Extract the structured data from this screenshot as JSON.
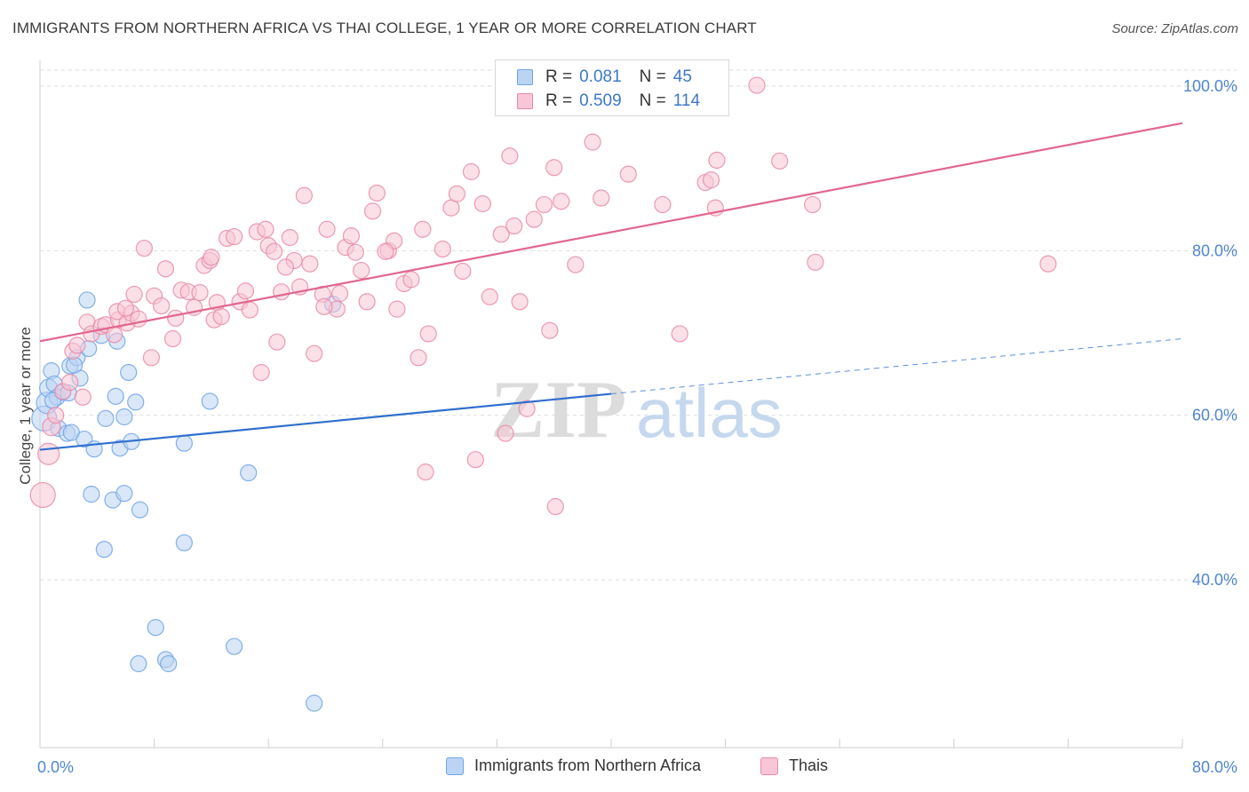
{
  "title": "IMMIGRANTS FROM NORTHERN AFRICA VS THAI COLLEGE, 1 YEAR OR MORE CORRELATION CHART",
  "source": "Source: ZipAtlas.com",
  "watermark": {
    "zip": "ZIP",
    "atlas": "atlas"
  },
  "legend": {
    "r_label": "R =",
    "n_label": "N =",
    "series": [
      {
        "name": "Immigrants from Northern Africa",
        "r": "0.081",
        "n": "45",
        "color": "#6fa3e6",
        "fill": "#bcd4f3"
      },
      {
        "name": "Thais",
        "r": "0.509",
        "n": "114",
        "color": "#e889a8",
        "fill": "#f8c6d6"
      }
    ]
  },
  "chart_data": {
    "type": "scatter",
    "title": "IMMIGRANTS FROM NORTHERN AFRICA VS THAI COLLEGE, 1 YEAR OR MORE CORRELATION CHART",
    "xlabel": "",
    "ylabel": "College, 1 year or more",
    "xlim": [
      0,
      80
    ],
    "ylim": [
      20,
      102
    ],
    "x_tick_labels": [
      "0.0%",
      "80.0%"
    ],
    "y_ticks": [
      40,
      60,
      80,
      100
    ],
    "y_tick_labels": [
      "40.0%",
      "60.0%",
      "80.0%",
      "100.0%"
    ],
    "grid": "horizontal dashed",
    "series": [
      {
        "name": "Immigrants from Northern Africa",
        "color": "#6fa3e6",
        "fill": "#bcd4f3",
        "trend": {
          "x0": 0,
          "y0": 55.8,
          "x1": 40,
          "y1": 62.6,
          "dash_to_x": 80,
          "dash_to_y": 69.3
        },
        "points": [
          [
            0.3,
            59.6,
            14
          ],
          [
            0.5,
            61.5,
            12
          ],
          [
            0.6,
            63.3,
            10
          ],
          [
            0.8,
            65.4,
            9
          ],
          [
            1.0,
            63.8,
            9
          ],
          [
            1.2,
            62.2,
            9
          ],
          [
            1.3,
            58.4,
            9
          ],
          [
            1.6,
            62.8,
            9
          ],
          [
            1.9,
            57.8,
            9
          ],
          [
            2.1,
            66.0,
            9
          ],
          [
            2.2,
            57.9,
            9
          ],
          [
            2.6,
            67.0,
            9
          ],
          [
            2.8,
            64.5,
            9
          ],
          [
            3.1,
            57.1,
            9
          ],
          [
            3.4,
            68.1,
            9
          ],
          [
            3.3,
            74.0,
            9
          ],
          [
            3.8,
            55.9,
            9
          ],
          [
            4.3,
            69.7,
            9
          ],
          [
            4.6,
            59.6,
            9
          ],
          [
            5.3,
            62.3,
            9
          ],
          [
            5.4,
            69.0,
            9
          ],
          [
            5.6,
            56.0,
            9
          ],
          [
            5.9,
            59.8,
            9
          ],
          [
            6.2,
            65.2,
            9
          ],
          [
            6.4,
            56.8,
            9
          ],
          [
            6.7,
            61.6,
            9
          ],
          [
            7.0,
            48.5,
            9
          ],
          [
            8.1,
            34.2,
            9
          ],
          [
            8.8,
            30.3,
            9
          ],
          [
            9.0,
            29.8,
            9
          ],
          [
            10.1,
            56.6,
            9
          ],
          [
            10.1,
            44.5,
            9
          ],
          [
            11.9,
            61.7,
            9
          ],
          [
            13.6,
            31.9,
            9
          ],
          [
            14.6,
            53.0,
            9
          ],
          [
            19.2,
            25.0,
            9
          ],
          [
            20.5,
            73.5,
            9
          ],
          [
            3.6,
            50.4,
            9
          ],
          [
            4.5,
            43.7,
            9
          ],
          [
            5.1,
            49.7,
            9
          ],
          [
            5.9,
            50.5,
            9
          ],
          [
            6.9,
            29.8,
            9
          ],
          [
            2.0,
            62.7,
            9
          ],
          [
            2.4,
            66.1,
            9
          ],
          [
            0.9,
            61.8,
            9
          ]
        ]
      },
      {
        "name": "Thais",
        "color": "#e889a8",
        "fill": "#f8c6d6",
        "trend": {
          "x0": 0,
          "y0": 69.0,
          "x1": 80,
          "y1": 95.5
        },
        "points": [
          [
            0.2,
            50.3,
            14
          ],
          [
            0.6,
            55.3,
            12
          ],
          [
            0.8,
            58.6,
            10
          ],
          [
            1.1,
            60.0,
            9
          ],
          [
            1.6,
            62.9,
            9
          ],
          [
            2.1,
            64.0,
            9
          ],
          [
            2.3,
            67.8,
            9
          ],
          [
            2.6,
            68.5,
            9
          ],
          [
            3.0,
            62.2,
            9
          ],
          [
            3.3,
            71.3,
            9
          ],
          [
            3.6,
            69.9,
            9
          ],
          [
            4.3,
            70.8,
            9
          ],
          [
            4.6,
            71.0,
            9
          ],
          [
            5.2,
            69.8,
            9
          ],
          [
            5.5,
            71.6,
            9
          ],
          [
            5.4,
            72.6,
            9
          ],
          [
            6.1,
            71.2,
            9
          ],
          [
            6.4,
            72.4,
            9
          ],
          [
            6.6,
            74.7,
            9
          ],
          [
            6.9,
            71.7,
            9
          ],
          [
            7.3,
            80.3,
            9
          ],
          [
            7.8,
            67.0,
            9
          ],
          [
            8.0,
            74.5,
            9
          ],
          [
            8.5,
            73.3,
            9
          ],
          [
            8.8,
            77.8,
            9
          ],
          [
            9.3,
            69.3,
            9
          ],
          [
            9.5,
            71.8,
            9
          ],
          [
            9.9,
            75.2,
            9
          ],
          [
            10.4,
            75.0,
            9
          ],
          [
            10.8,
            73.1,
            9
          ],
          [
            11.2,
            74.9,
            9
          ],
          [
            11.5,
            78.2,
            9
          ],
          [
            11.9,
            78.8,
            9
          ],
          [
            12.2,
            71.6,
            9
          ],
          [
            12.4,
            73.7,
            9
          ],
          [
            12.7,
            72.0,
            9
          ],
          [
            13.1,
            81.5,
            9
          ],
          [
            13.6,
            81.7,
            9
          ],
          [
            14.0,
            73.8,
            9
          ],
          [
            14.4,
            75.1,
            9
          ],
          [
            14.7,
            72.8,
            9
          ],
          [
            15.2,
            82.3,
            9
          ],
          [
            15.5,
            65.2,
            9
          ],
          [
            15.8,
            82.6,
            9
          ],
          [
            16.0,
            80.6,
            9
          ],
          [
            16.4,
            79.9,
            9
          ],
          [
            16.6,
            68.9,
            9
          ],
          [
            16.9,
            75.0,
            9
          ],
          [
            17.5,
            81.6,
            9
          ],
          [
            17.8,
            78.8,
            9
          ],
          [
            18.2,
            75.6,
            9
          ],
          [
            18.5,
            86.7,
            9
          ],
          [
            18.9,
            78.4,
            9
          ],
          [
            19.2,
            67.5,
            9
          ],
          [
            19.8,
            74.7,
            9
          ],
          [
            20.1,
            82.6,
            9
          ],
          [
            20.8,
            72.9,
            9
          ],
          [
            21.0,
            74.8,
            9
          ],
          [
            21.4,
            80.4,
            9
          ],
          [
            21.8,
            81.8,
            9
          ],
          [
            22.1,
            79.8,
            9
          ],
          [
            22.5,
            77.6,
            9
          ],
          [
            22.9,
            73.8,
            9
          ],
          [
            23.3,
            84.8,
            9
          ],
          [
            23.6,
            87.0,
            9
          ],
          [
            24.4,
            80.0,
            9
          ],
          [
            24.8,
            81.2,
            9
          ],
          [
            25.0,
            72.9,
            9
          ],
          [
            25.5,
            76.0,
            9
          ],
          [
            26.0,
            76.5,
            9
          ],
          [
            26.5,
            67.0,
            9
          ],
          [
            26.8,
            82.6,
            9
          ],
          [
            27.2,
            69.9,
            9
          ],
          [
            28.2,
            80.2,
            9
          ],
          [
            28.8,
            85.2,
            9
          ],
          [
            29.2,
            86.9,
            9
          ],
          [
            29.6,
            77.5,
            9
          ],
          [
            30.2,
            89.6,
            9
          ],
          [
            30.5,
            54.6,
            9
          ],
          [
            31.0,
            85.7,
            9
          ],
          [
            31.5,
            74.4,
            9
          ],
          [
            32.3,
            82.0,
            9
          ],
          [
            32.6,
            57.8,
            9
          ],
          [
            32.9,
            91.5,
            9
          ],
          [
            33.2,
            83.0,
            9
          ],
          [
            33.6,
            73.8,
            9
          ],
          [
            34.1,
            60.8,
            9
          ],
          [
            34.6,
            83.8,
            9
          ],
          [
            35.3,
            85.6,
            9
          ],
          [
            35.7,
            70.3,
            9
          ],
          [
            36.0,
            90.1,
            9
          ],
          [
            36.1,
            48.9,
            9
          ],
          [
            36.5,
            86.0,
            9
          ],
          [
            37.5,
            78.3,
            9
          ],
          [
            38.7,
            93.2,
            9
          ],
          [
            39.3,
            86.4,
            9
          ],
          [
            41.2,
            89.3,
            9
          ],
          [
            43.6,
            85.6,
            9
          ],
          [
            44.8,
            69.9,
            9
          ],
          [
            46.6,
            88.3,
            9
          ],
          [
            47.0,
            88.6,
            9
          ],
          [
            47.3,
            85.2,
            9
          ],
          [
            47.4,
            91.0,
            9
          ],
          [
            50.2,
            100.1,
            9
          ],
          [
            51.8,
            90.9,
            9
          ],
          [
            54.1,
            85.6,
            9
          ],
          [
            54.3,
            78.6,
            9
          ],
          [
            70.6,
            78.4,
            9
          ],
          [
            27.0,
            53.1,
            9
          ],
          [
            24.2,
            79.9,
            9
          ],
          [
            19.9,
            73.2,
            9
          ],
          [
            12.0,
            79.2,
            9
          ],
          [
            17.2,
            78.0,
            9
          ],
          [
            6.0,
            73.0,
            9
          ]
        ]
      }
    ]
  }
}
